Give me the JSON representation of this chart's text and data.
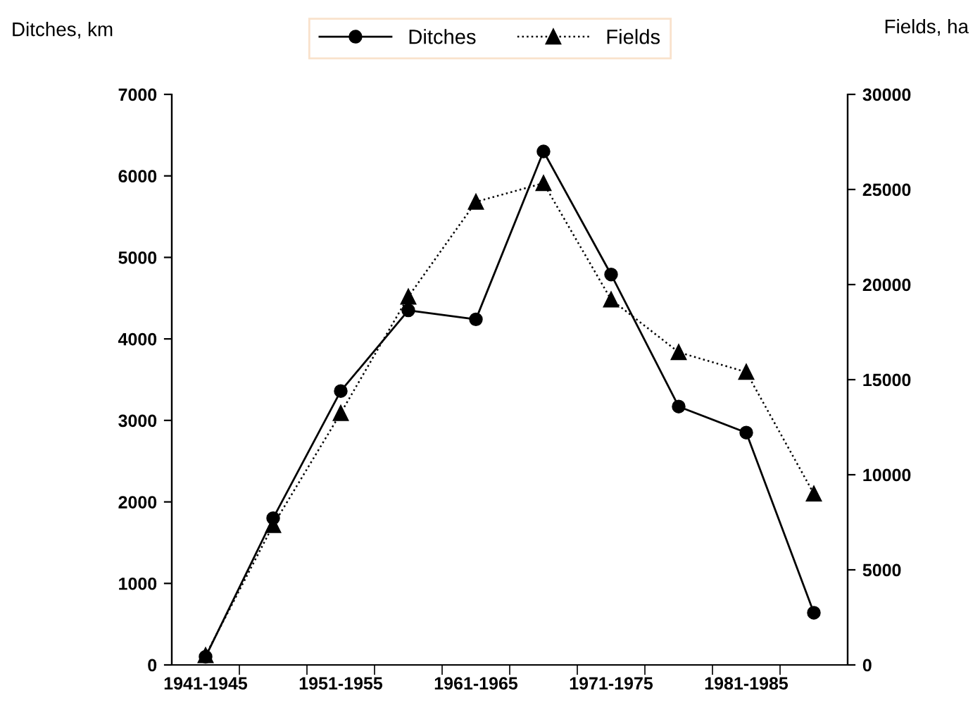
{
  "chart_data": {
    "type": "line",
    "ylabel": "Ditches, km",
    "y2label": "Fields, ha",
    "categories": [
      "1941-1945",
      null,
      "1951-1955",
      null,
      "1961-1965",
      null,
      "1971-1975",
      null,
      "1981-1985",
      null
    ],
    "series": [
      {
        "name": "Ditches",
        "color": "#000000",
        "marker": "circle",
        "line_style": "solid",
        "values": [
          100,
          1800,
          3360,
          4350,
          4240,
          6300,
          4790,
          3170,
          2850,
          640
        ]
      },
      {
        "name": "Fields",
        "color": "#000000",
        "marker": "triangle",
        "line_style": "dotted",
        "axis": "y2",
        "values": [
          500,
          7350,
          13240,
          19360,
          24350,
          25330,
          19210,
          16440,
          15400,
          9000
        ]
      }
    ],
    "ylim": [
      0,
      7000
    ],
    "yticks": [
      0,
      1000,
      2000,
      3000,
      4000,
      5000,
      6000,
      7000
    ],
    "y2lim": [
      0,
      30000
    ],
    "y2ticks": [
      0,
      5000,
      10000,
      15000,
      20000,
      25000,
      30000
    ],
    "grid": false,
    "legend": "top"
  }
}
